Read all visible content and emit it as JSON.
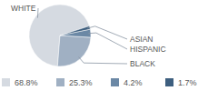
{
  "chart_data": {
    "type": "pie",
    "categories": [
      "WHITE",
      "BLACK",
      "HISPANIC",
      "ASIAN"
    ],
    "values": [
      68.8,
      25.3,
      4.2,
      1.7
    ],
    "value_labels": [
      "68.8%",
      "25.3%",
      "4.2%",
      "1.7%"
    ],
    "colors": [
      "#d5dae1",
      "#a0b0c3",
      "#6b88a5",
      "#3e5f7f"
    ],
    "legend": "bottom"
  }
}
